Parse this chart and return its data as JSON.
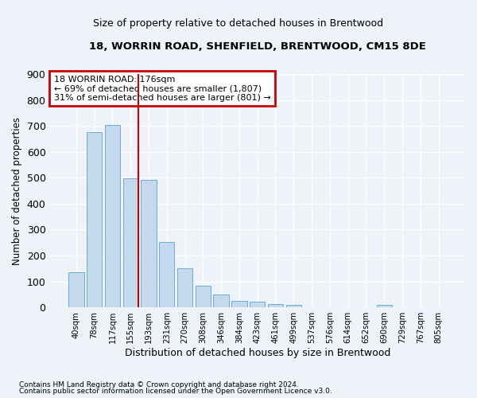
{
  "title1": "18, WORRIN ROAD, SHENFIELD, BRENTWOOD, CM15 8DE",
  "title2": "Size of property relative to detached houses in Brentwood",
  "xlabel": "Distribution of detached houses by size in Brentwood",
  "ylabel": "Number of detached properties",
  "footnote1": "Contains HM Land Registry data © Crown copyright and database right 2024.",
  "footnote2": "Contains public sector information licensed under the Open Government Licence v3.0.",
  "bar_labels": [
    "40sqm",
    "78sqm",
    "117sqm",
    "155sqm",
    "193sqm",
    "231sqm",
    "270sqm",
    "308sqm",
    "346sqm",
    "384sqm",
    "423sqm",
    "461sqm",
    "499sqm",
    "537sqm",
    "576sqm",
    "614sqm",
    "652sqm",
    "690sqm",
    "729sqm",
    "767sqm",
    "805sqm"
  ],
  "bar_values": [
    135,
    675,
    703,
    497,
    492,
    252,
    150,
    85,
    51,
    26,
    21,
    12,
    10,
    0,
    0,
    0,
    0,
    10,
    0,
    0,
    0
  ],
  "bar_color": "#c5d9ee",
  "bar_edge_color": "#6aaed6",
  "background_color": "#eef2f9",
  "grid_color": "#ffffff",
  "annotation_box_text": "18 WORRIN ROAD: 176sqm\n← 69% of detached houses are smaller (1,807)\n31% of semi-detached houses are larger (801) →",
  "annotation_box_color": "#cc0000",
  "vline_color": "#cc0000",
  "vline_x": 3.42,
  "ylim": [
    0,
    900
  ],
  "yticks": [
    0,
    100,
    200,
    300,
    400,
    500,
    600,
    700,
    800,
    900
  ]
}
